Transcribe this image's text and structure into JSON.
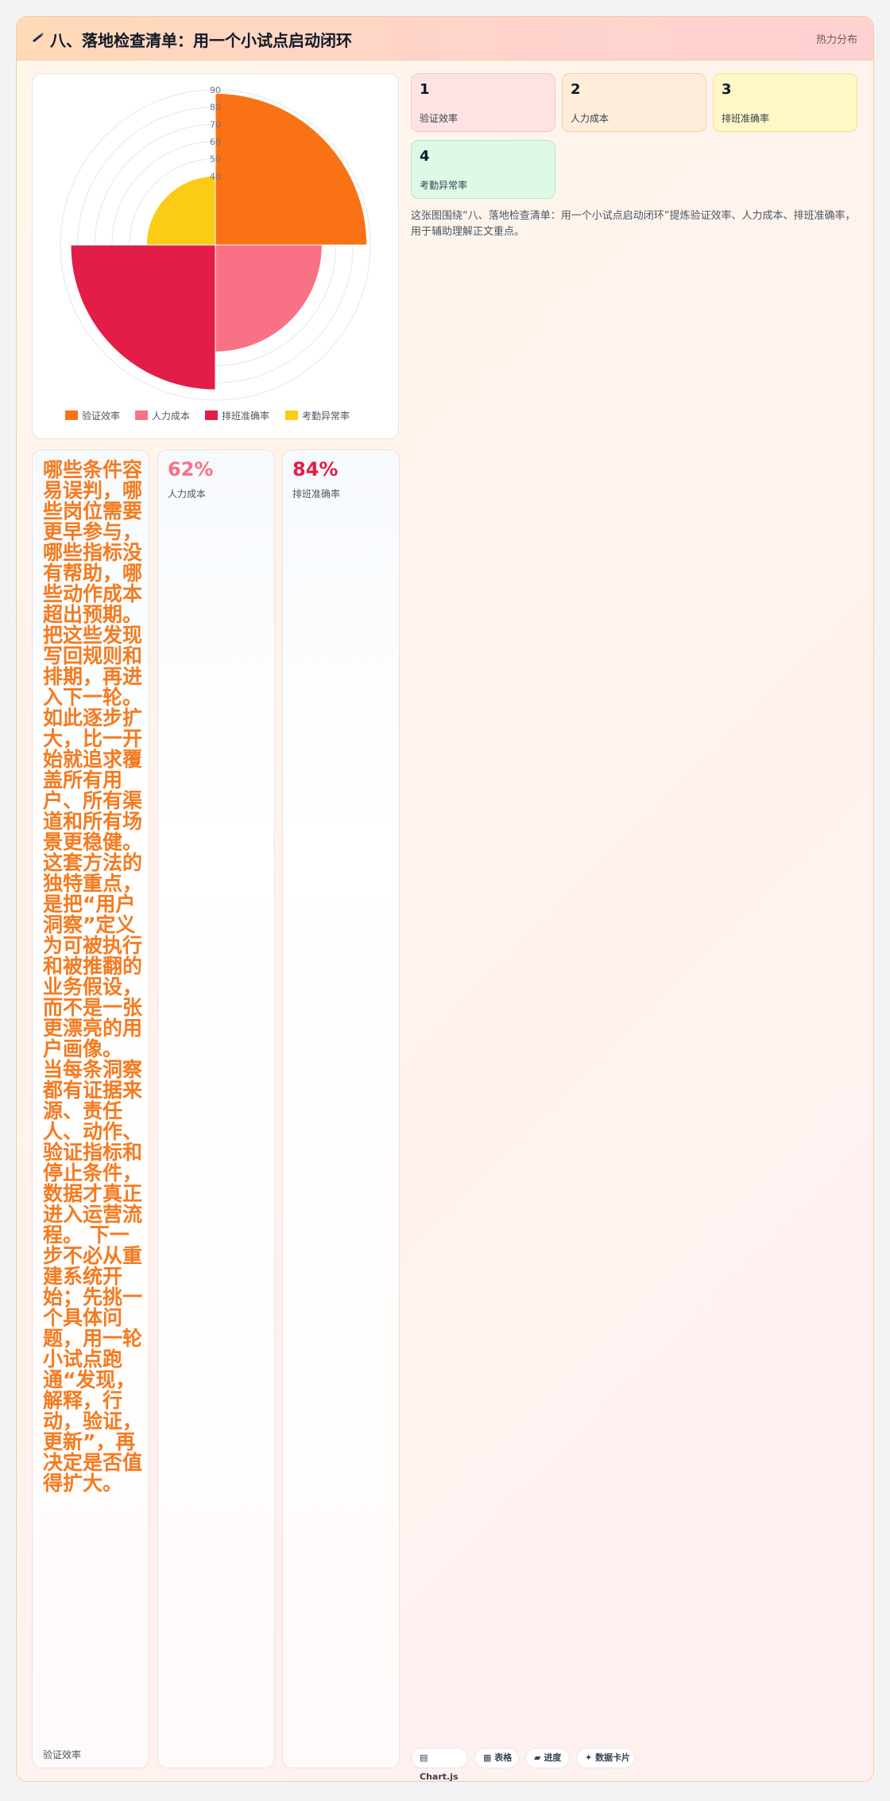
{
  "header": {
    "icon": "pen-icon",
    "title": "八、落地检查清单：用一个小试点启动闭环",
    "tag": "热力分布"
  },
  "chart_data": {
    "type": "polarArea",
    "categories": [
      "验证效率",
      "人力成本",
      "排班准确率",
      "考勤异常率"
    ],
    "values": [
      88,
      62,
      84,
      40
    ],
    "colors": [
      "#f97316",
      "#f87185",
      "#e11d48",
      "#facc15"
    ],
    "r_ticks": [
      40,
      50,
      60,
      70,
      80,
      90
    ],
    "r_max": 90,
    "legend_position": "bottom"
  },
  "stats": [
    {
      "num": "1",
      "label": "验证效率"
    },
    {
      "num": "2",
      "label": "人力成本"
    },
    {
      "num": "3",
      "label": "排班准确率"
    },
    {
      "num": "4",
      "label": "考勤异常率"
    }
  ],
  "description": "这张图围绕“八、落地检查清单：用一个小试点启动闭环”提炼验证效率、人力成本、排班准确率，用于辅助理解正文重点。",
  "kpis": {
    "k1": {
      "text": "哪些条件容易误判，哪些岗位需要更早参与，哪些指标没有帮助，哪些动作成本超出预期。把这些发现写回规则和排期，再进入下一轮。如此逐步扩大，比一开始就追求覆盖所有用户、所有渠道和所有场景更稳健。 这套方法的独特重点，是把“用户洞察”定义为可被执行和被推翻的业务假设，而不是一张更漂亮的用户画像。 当每条洞察都有证据来源、责任人、动作、验证指标和停止条件，数据才真正进入运营流程。 下一步不必从重建系统开始；先挑一个具体问题，用一轮小试点跑通“发现，解释，行动，验证，更新”，再决定是否值得扩大。",
      "label": "验证效率"
    },
    "k2": {
      "value": "62%",
      "label": "人力成本",
      "color": "#f87185"
    },
    "k3": {
      "value": "84%",
      "label": "排班准确率",
      "color": "#e11d48"
    }
  },
  "chips": [
    {
      "icon": "chart-icon",
      "label": "Chart.js"
    },
    {
      "icon": "table-icon",
      "label": "表格"
    },
    {
      "icon": "progress-icon",
      "label": "进度"
    },
    {
      "icon": "sparkle-icon",
      "label": "数据卡片"
    }
  ]
}
